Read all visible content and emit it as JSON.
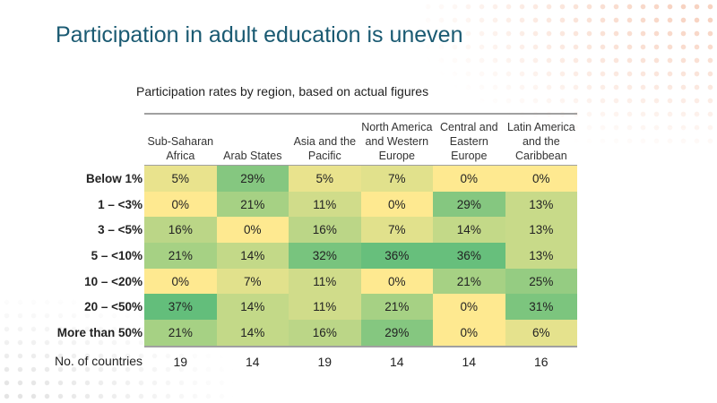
{
  "title": "Participation in adult education is uneven",
  "subtitle": "Participation rates by region, based on actual figures",
  "colors": {
    "low": "#fee990",
    "high": "#63be7b",
    "title": "#1a5a72"
  },
  "chart_data": {
    "type": "heatmap",
    "title": "Participation rates by region, based on actual figures",
    "columns": [
      "Sub-Saharan Africa",
      "Arab States",
      "Asia and the Pacific",
      "North America and Western Europe",
      "Central and Eastern Europe",
      "Latin America and the Caribbean"
    ],
    "rows": [
      "Below 1%",
      "1 – <3%",
      "3 – <5%",
      "5 – <10%",
      "10 – <20%",
      "20 – <50%",
      "More than 50%"
    ],
    "values": [
      [
        5,
        29,
        5,
        7,
        0,
        0
      ],
      [
        0,
        21,
        11,
        0,
        29,
        13
      ],
      [
        16,
        0,
        16,
        7,
        14,
        13
      ],
      [
        21,
        14,
        32,
        36,
        36,
        13
      ],
      [
        0,
        7,
        11,
        0,
        21,
        25
      ],
      [
        37,
        14,
        11,
        21,
        0,
        31
      ],
      [
        21,
        14,
        16,
        29,
        0,
        6
      ]
    ],
    "value_labels": [
      [
        "5%",
        "29%",
        "5%",
        "7%",
        "0%",
        "0%"
      ],
      [
        "0%",
        "21%",
        "11%",
        "0%",
        "29%",
        "13%"
      ],
      [
        "16%",
        "0%",
        "16%",
        "7%",
        "14%",
        "13%"
      ],
      [
        "21%",
        "14%",
        "32%",
        "36%",
        "36%",
        "13%"
      ],
      [
        "0%",
        "7%",
        "11%",
        "0%",
        "21%",
        "25%"
      ],
      [
        "37%",
        "14%",
        "11%",
        "21%",
        "0%",
        "31%"
      ],
      [
        "21%",
        "14%",
        "16%",
        "29%",
        "0%",
        "6%"
      ]
    ],
    "count_label": "No. of countries",
    "counts": [
      "19",
      "14",
      "19",
      "14",
      "14",
      "16"
    ],
    "color_range": [
      0,
      37
    ]
  }
}
